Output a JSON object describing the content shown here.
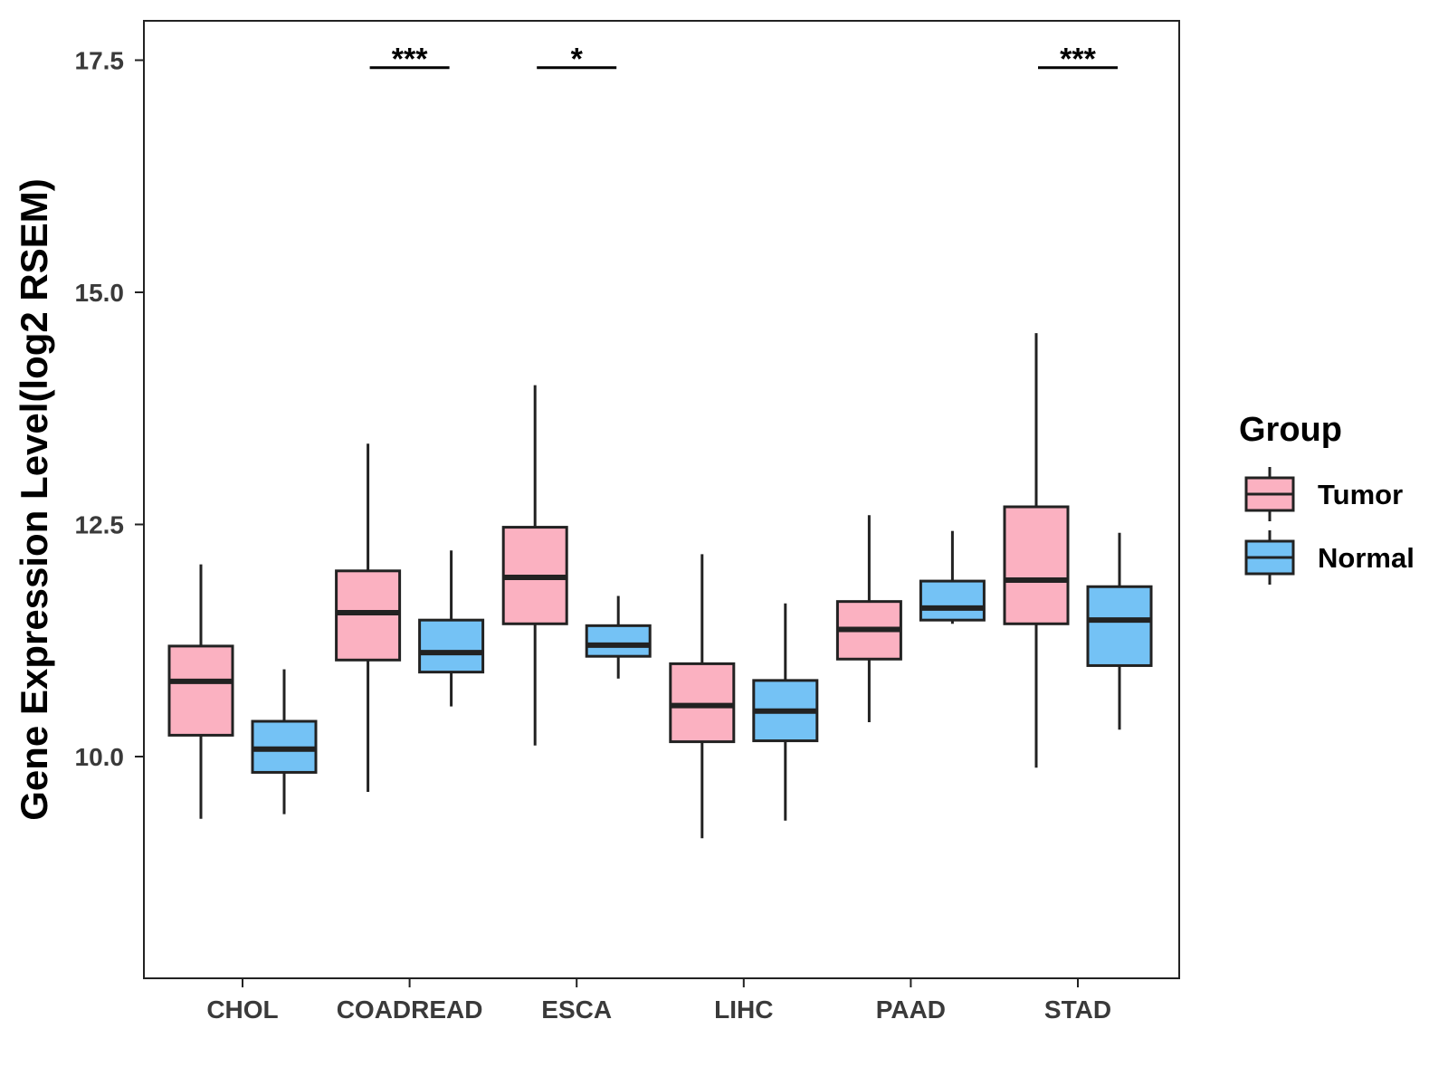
{
  "chart_data": {
    "type": "boxplot",
    "title": "",
    "xlabel": "",
    "ylabel": "Gene Expression Level(log2 RSEM)",
    "ylim": [
      7.6,
      18.0
    ],
    "yticks": [
      10.0,
      12.5,
      15.0,
      17.5
    ],
    "ytick_labels": [
      "10.0",
      "12.5",
      "15.0",
      "17.5"
    ],
    "grid": false,
    "legend": {
      "title": "Group",
      "position": "right",
      "entries": [
        {
          "name": "Tumor",
          "color": "#FBB1C1"
        },
        {
          "name": "Normal",
          "color": "#74C2F5"
        }
      ]
    },
    "categories": [
      "CHOL",
      "COADREAD",
      "ESCA",
      "LIHC",
      "PAAD",
      "STAD"
    ],
    "series": [
      {
        "name": "Tumor",
        "color": "#FBB1C1",
        "boxes": [
          {
            "whisker_low": 9.33,
            "q1": 10.23,
            "median": 10.81,
            "q3": 11.19,
            "whisker_high": 12.07
          },
          {
            "whisker_low": 9.62,
            "q1": 11.04,
            "median": 11.55,
            "q3": 12.0,
            "whisker_high": 13.37
          },
          {
            "whisker_low": 10.12,
            "q1": 11.43,
            "median": 11.93,
            "q3": 12.47,
            "whisker_high": 14.0
          },
          {
            "whisker_low": 9.12,
            "q1": 10.16,
            "median": 10.55,
            "q3": 11.0,
            "whisker_high": 12.18
          },
          {
            "whisker_low": 10.37,
            "q1": 11.05,
            "median": 11.37,
            "q3": 11.67,
            "whisker_high": 12.6
          },
          {
            "whisker_low": 9.88,
            "q1": 11.43,
            "median": 11.9,
            "q3": 12.69,
            "whisker_high": 14.56
          }
        ]
      },
      {
        "name": "Normal",
        "color": "#74C2F5",
        "boxes": [
          {
            "whisker_low": 9.38,
            "q1": 9.83,
            "median": 10.08,
            "q3": 10.38,
            "whisker_high": 10.94
          },
          {
            "whisker_low": 10.54,
            "q1": 10.91,
            "median": 11.12,
            "q3": 11.47,
            "whisker_high": 12.22
          },
          {
            "whisker_low": 10.84,
            "q1": 11.08,
            "median": 11.2,
            "q3": 11.41,
            "whisker_high": 11.73
          },
          {
            "whisker_low": 9.31,
            "q1": 10.17,
            "median": 10.49,
            "q3": 10.82,
            "whisker_high": 11.65
          },
          {
            "whisker_low": 11.43,
            "q1": 11.47,
            "median": 11.6,
            "q3": 11.89,
            "whisker_high": 12.43
          },
          {
            "whisker_low": 10.29,
            "q1": 10.98,
            "median": 11.47,
            "q3": 11.83,
            "whisker_high": 12.41
          }
        ]
      }
    ],
    "annotations": [
      {
        "category": "COADREAD",
        "label": "***",
        "y": 17.42
      },
      {
        "category": "ESCA",
        "label": "*",
        "y": 17.42
      },
      {
        "category": "STAD",
        "label": "***",
        "y": 17.42
      }
    ]
  }
}
